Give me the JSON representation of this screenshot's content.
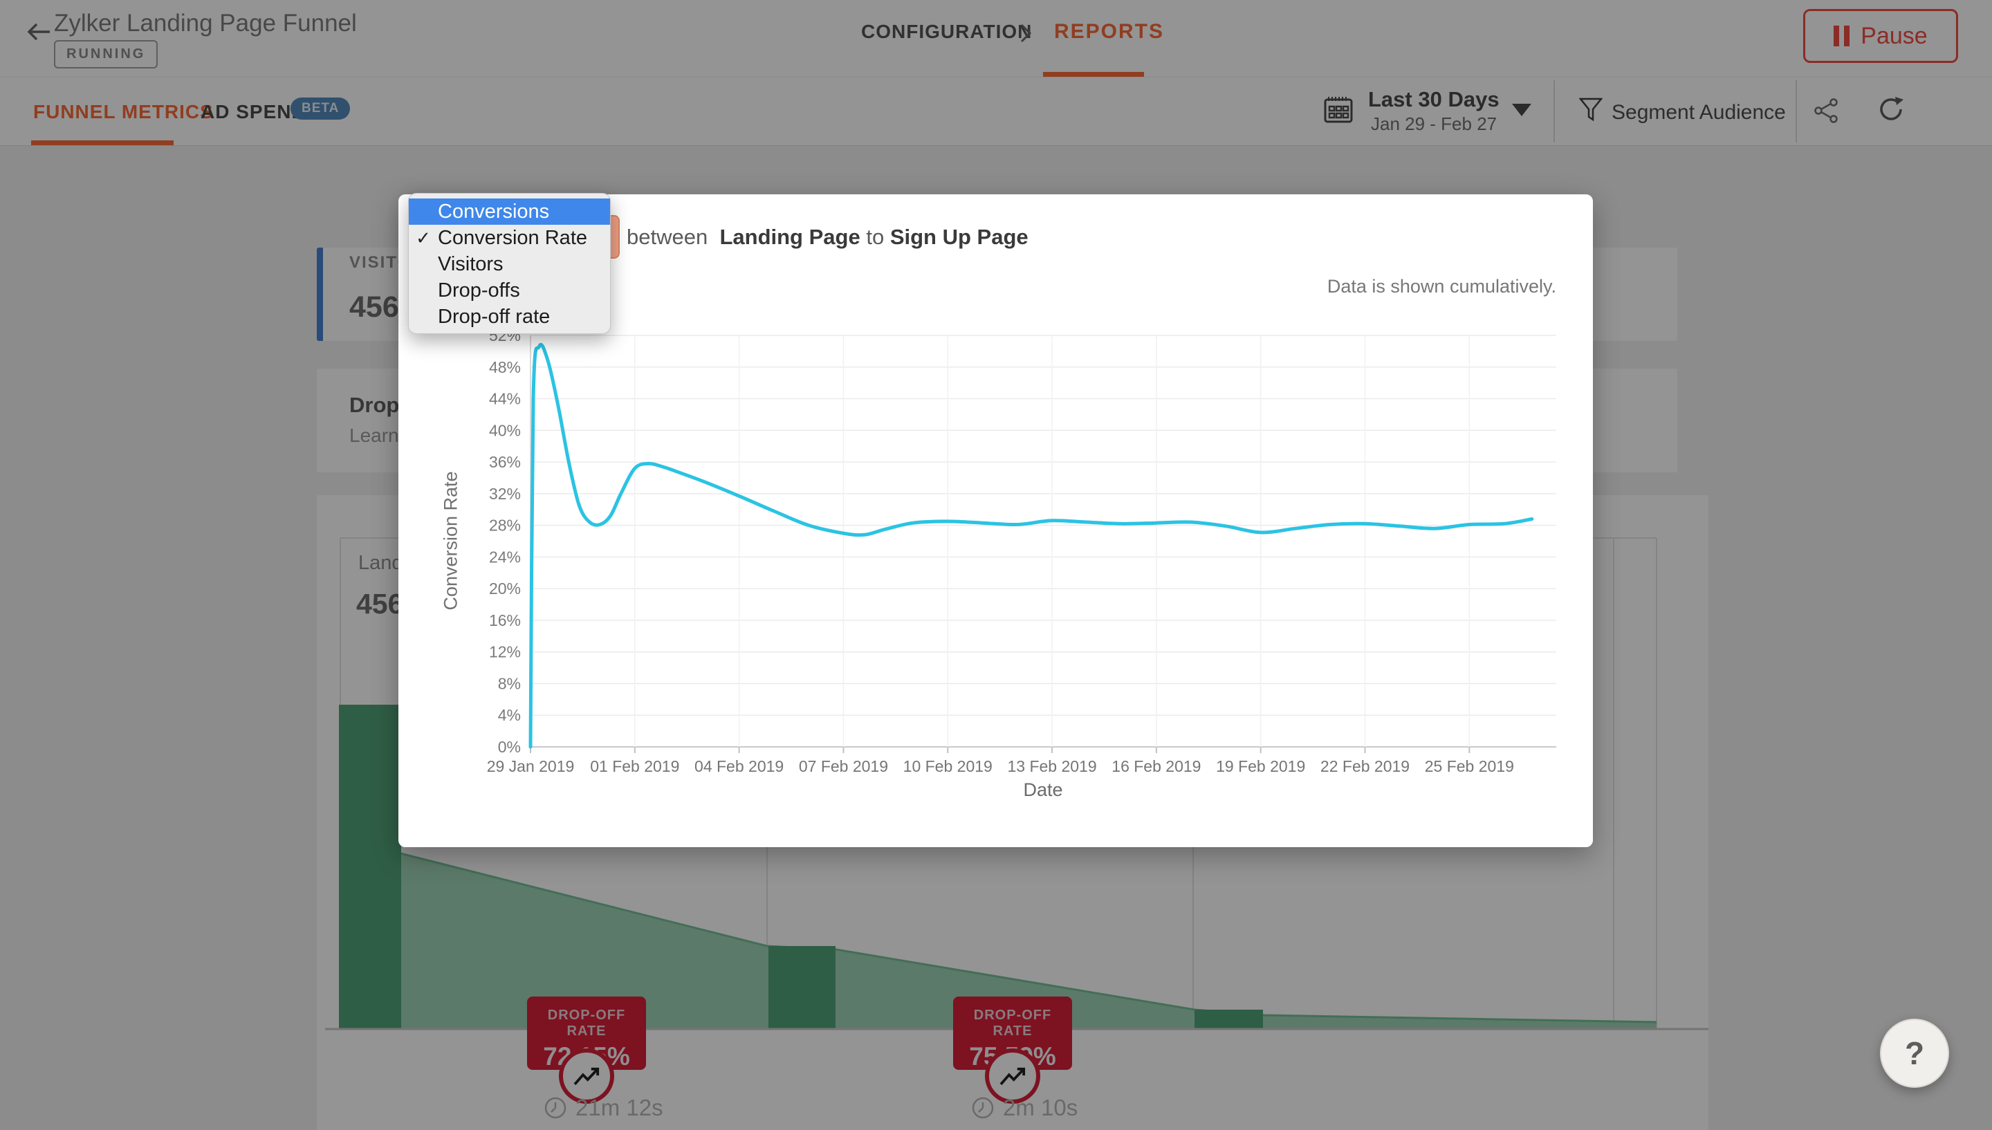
{
  "header": {
    "title": "Zylker Landing Page Funnel",
    "status_badge": "RUNNING",
    "breadcrumb": [
      {
        "label": "CONFIGURATION",
        "active": false
      },
      {
        "label": "REPORTS",
        "active": true
      }
    ],
    "pause_button": {
      "label": "Pause",
      "color": "#ef4d44"
    }
  },
  "toolbar": {
    "tabs": [
      {
        "label": "FUNNEL METRICS",
        "active": true
      },
      {
        "label": "AD SPEND",
        "badge": "BETA",
        "active": false
      }
    ],
    "date_picker": {
      "label": "Last 30 Days",
      "range": "Jan 29 - Feb 27"
    },
    "segment": {
      "label": "Segment Audience"
    },
    "accent_color": "#fa6a38"
  },
  "background": {
    "visitors_card": {
      "label": "VISITORS",
      "value": "456",
      "accent_color": "#4880d2"
    },
    "banner": {
      "title": "Drop-off",
      "subtitle": "Learn more"
    },
    "funnel": {
      "step_label": "Landing Page",
      "step_value": "456",
      "bar_color": "#51a279",
      "area_color": "#9fd2b5",
      "badge_color": "#d8203a",
      "dropoffs": [
        {
          "label": "DROP-OFF RATE",
          "rate": "72.15%",
          "time": "21m 12s"
        },
        {
          "label": "DROP-OFF RATE",
          "rate": "75.59%",
          "time": "2m 10s"
        }
      ]
    }
  },
  "modal": {
    "title": {
      "prefix": "between",
      "from": "Landing Page",
      "connector": "to",
      "to": "Sign Up Page"
    },
    "note": "Data is shown cumulatively.",
    "dropdown": {
      "highlight_color": "#3f87ea",
      "options": [
        {
          "label": "Conversions",
          "highlighted": true,
          "checked": false
        },
        {
          "label": "Conversion Rate",
          "highlighted": false,
          "checked": true
        },
        {
          "label": "Visitors",
          "highlighted": false,
          "checked": false
        },
        {
          "label": "Drop-offs",
          "highlighted": false,
          "checked": false
        },
        {
          "label": "Drop-off rate",
          "highlighted": false,
          "checked": false
        }
      ]
    }
  },
  "chart_data": {
    "type": "line",
    "title": "",
    "ylabel": "Conversion Rate",
    "xlabel": "Date",
    "annotation": "Data is shown cumulatively.",
    "line_color": "#2bc3e3",
    "grid": true,
    "ylim": [
      0,
      52
    ],
    "ytick_step": 4,
    "ytick_suffix": "%",
    "x_range_days": [
      0,
      29.5
    ],
    "x_tick_offsets": [
      0,
      3,
      6,
      9,
      12,
      15,
      18,
      21,
      24,
      27
    ],
    "x_tick_labels": [
      "29 Jan 2019",
      "01 Feb 2019",
      "04 Feb 2019",
      "07 Feb 2019",
      "10 Feb 2019",
      "13 Feb 2019",
      "16 Feb 2019",
      "19 Feb 2019",
      "22 Feb 2019",
      "25 Feb 2019"
    ],
    "series": [
      {
        "name": "Conversion Rate",
        "points": [
          [
            0,
            0
          ],
          [
            0.08,
            44
          ],
          [
            0.25,
            50.6
          ],
          [
            0.5,
            48.8
          ],
          [
            0.8,
            43
          ],
          [
            1.1,
            36
          ],
          [
            1.4,
            30.5
          ],
          [
            1.7,
            28.4
          ],
          [
            2,
            28.1
          ],
          [
            2.3,
            29.2
          ],
          [
            2.6,
            32
          ],
          [
            3,
            35.2
          ],
          [
            3.4,
            35.8
          ],
          [
            3.8,
            35.4
          ],
          [
            4.2,
            34.8
          ],
          [
            5,
            33.5
          ],
          [
            6,
            31.7
          ],
          [
            7,
            29.8
          ],
          [
            8,
            28
          ],
          [
            9,
            27
          ],
          [
            9.6,
            26.8
          ],
          [
            10.2,
            27.5
          ],
          [
            11,
            28.3
          ],
          [
            12,
            28.5
          ],
          [
            13,
            28.3
          ],
          [
            14,
            28.1
          ],
          [
            15,
            28.6
          ],
          [
            16,
            28.4
          ],
          [
            17,
            28.2
          ],
          [
            18,
            28.3
          ],
          [
            19,
            28.4
          ],
          [
            20,
            27.9
          ],
          [
            21,
            27.1
          ],
          [
            22,
            27.6
          ],
          [
            23,
            28.1
          ],
          [
            24,
            28.2
          ],
          [
            25,
            27.9
          ],
          [
            26,
            27.6
          ],
          [
            27,
            28.1
          ],
          [
            28,
            28.2
          ],
          [
            28.8,
            28.8
          ]
        ]
      }
    ]
  },
  "fab": {
    "label": "?"
  }
}
